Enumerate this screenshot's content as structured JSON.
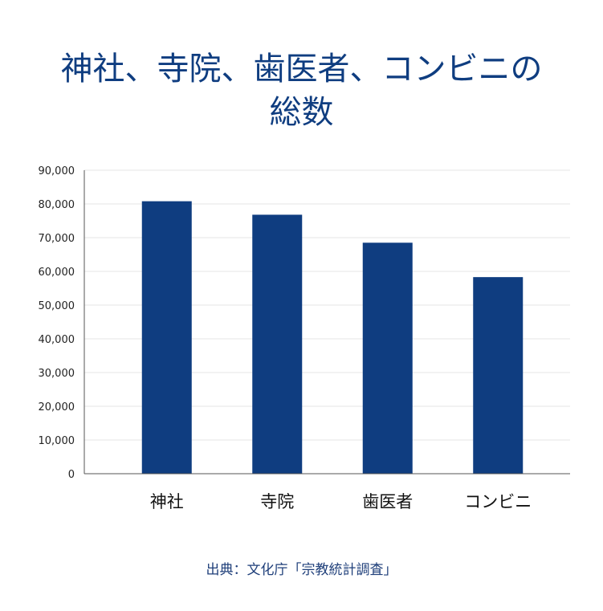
{
  "title_line1": "神社、寺院、歯医者、コンビニの",
  "title_line2": "総数",
  "source": "出典：文化庁「宗教統計調査」",
  "colors": {
    "bar": "#0f3d80",
    "title": "#0f3d80",
    "grid": "#e6e6e6",
    "axis": "#555555"
  },
  "chart_data": {
    "type": "bar",
    "categories": [
      "神社",
      "寺院",
      "歯医者",
      "コンビニ"
    ],
    "values": [
      80800,
      76800,
      68500,
      58300
    ],
    "ylim": [
      0,
      90000
    ],
    "yticks": [
      0,
      10000,
      20000,
      30000,
      40000,
      50000,
      60000,
      70000,
      80000,
      90000
    ],
    "ytick_labels": [
      "0",
      "10,000",
      "20,000",
      "30,000",
      "40,000",
      "50,000",
      "60,000",
      "70,000",
      "80,000",
      "90,000"
    ],
    "grid": true,
    "legend": "none"
  }
}
